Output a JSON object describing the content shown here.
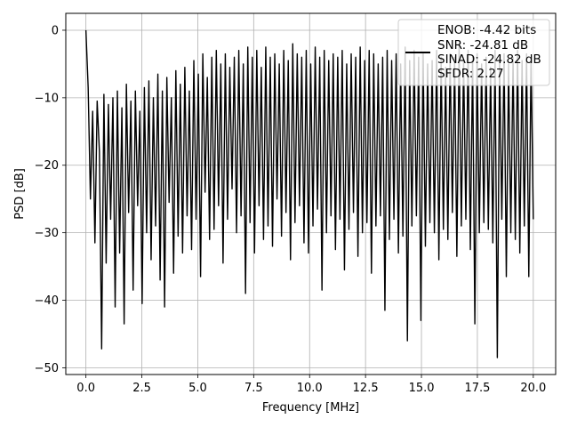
{
  "chart_data": {
    "type": "line",
    "title": "",
    "xlabel": "Frequency [MHz]",
    "ylabel": "PSD [dB]",
    "xlim": [
      -0.9,
      21.0
    ],
    "ylim": [
      -51,
      2.5
    ],
    "x_ticks": [
      0.0,
      2.5,
      5.0,
      7.5,
      10.0,
      12.5,
      15.0,
      17.5,
      20.0
    ],
    "x_tick_labels": [
      "0.0",
      "2.5",
      "5.0",
      "7.5",
      "10.0",
      "12.5",
      "15.0",
      "17.5",
      "20.0"
    ],
    "y_ticks": [
      0,
      -10,
      -20,
      -30,
      -40,
      -50
    ],
    "y_tick_labels": [
      "0",
      "−10",
      "−20",
      "−30",
      "−40",
      "−50"
    ],
    "grid": true,
    "legend_position": "top-right",
    "series": [
      {
        "color": "#000000",
        "x_range": [
          0,
          20
        ],
        "values": [
          0.0,
          -8.5,
          -25.0,
          -12.0,
          -31.5,
          -10.5,
          -18.0,
          -47.2,
          -9.5,
          -34.5,
          -11.0,
          -28.0,
          -10.0,
          -41.0,
          -9.0,
          -33.0,
          -11.5,
          -43.5,
          -8.0,
          -27.0,
          -10.5,
          -38.5,
          -9.0,
          -26.0,
          -12.0,
          -40.5,
          -8.5,
          -30.0,
          -7.5,
          -34.0,
          -10.0,
          -29.0,
          -6.5,
          -37.0,
          -9.0,
          -41.0,
          -7.0,
          -25.5,
          -10.0,
          -36.0,
          -6.0,
          -30.5,
          -8.0,
          -33.0,
          -5.5,
          -27.5,
          -9.0,
          -32.5,
          -4.5,
          -28.0,
          -6.5,
          -36.5,
          -3.5,
          -24.0,
          -7.0,
          -31.0,
          -4.0,
          -29.5,
          -3.0,
          -26.0,
          -5.0,
          -34.5,
          -3.5,
          -28.0,
          -5.5,
          -23.5,
          -4.0,
          -30.0,
          -3.0,
          -27.5,
          -5.0,
          -39.0,
          -2.5,
          -28.5,
          -4.0,
          -33.0,
          -3.0,
          -26.0,
          -5.5,
          -31.0,
          -2.5,
          -29.0,
          -4.0,
          -32.0,
          -3.5,
          -25.0,
          -5.0,
          -30.5,
          -3.0,
          -27.0,
          -4.5,
          -34.0,
          -2.0,
          -28.5,
          -3.5,
          -26.0,
          -4.0,
          -31.5,
          -3.0,
          -33.0,
          -5.0,
          -29.0,
          -2.5,
          -26.5,
          -4.0,
          -38.5,
          -3.0,
          -30.0,
          -4.5,
          -27.5,
          -3.5,
          -32.5,
          -4.0,
          -28.0,
          -3.0,
          -35.5,
          -5.0,
          -29.5,
          -3.5,
          -27.0,
          -4.0,
          -33.5,
          -2.5,
          -30.0,
          -4.5,
          -28.5,
          -3.0,
          -36.0,
          -3.5,
          -29.0,
          -5.0,
          -27.5,
          -4.0,
          -41.5,
          -3.0,
          -31.0,
          -4.5,
          -28.0,
          -3.5,
          -33.0,
          -5.0,
          -30.5,
          -2.5,
          -46.0,
          -4.5,
          -29.0,
          -3.0,
          -27.5,
          -4.0,
          -43.0,
          -3.5,
          -32.0,
          -5.0,
          -28.5,
          -4.5,
          -30.0,
          -3.0,
          -34.0,
          -4.0,
          -29.5,
          -5.5,
          -31.0,
          -3.5,
          -27.0,
          -4.0,
          -33.5,
          -2.5,
          -29.0,
          -4.5,
          -28.0,
          -3.0,
          -32.5,
          -4.0,
          -43.5,
          -3.5,
          -30.0,
          -5.0,
          -28.5,
          -4.0,
          -29.5,
          -5.5,
          -31.5,
          -3.0,
          -48.5,
          -4.5,
          -28.0,
          -3.5,
          -36.5,
          -5.0,
          -30.0,
          -4.0,
          -31.0,
          -3.0,
          -33.0,
          -4.5,
          -29.0,
          -3.5,
          -36.5,
          -4.0,
          -28.0
        ]
      }
    ],
    "legend_lines": [
      "ENOB: -4.42 bits",
      "SNR: -24.81 dB",
      "SINAD: -24.82 dB",
      "SFDR: 2.27"
    ]
  }
}
